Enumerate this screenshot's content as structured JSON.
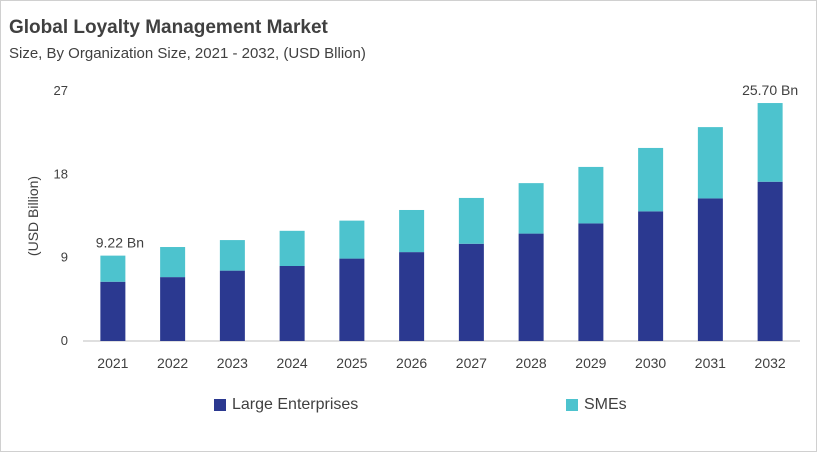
{
  "chart_data": {
    "type": "bar",
    "stacked": true,
    "title": "Global Loyalty Management Market",
    "subtitle": "Size, By Organization Size, 2021 - 2032, (USD Bllion)",
    "ylabel": "(USD Billion)",
    "xlabel": "",
    "ylim": [
      0,
      27
    ],
    "yticks": [
      0,
      9,
      18,
      27
    ],
    "grid": false,
    "legend_position": "bottom",
    "categories": [
      "2021",
      "2022",
      "2023",
      "2024",
      "2025",
      "2026",
      "2027",
      "2028",
      "2029",
      "2030",
      "2031",
      "2032"
    ],
    "series": [
      {
        "name": "Large Enterprises",
        "color": "#2B3990",
        "values": [
          6.4,
          6.9,
          7.6,
          8.1,
          8.9,
          9.6,
          10.5,
          11.6,
          12.7,
          14.0,
          15.4,
          17.2
        ]
      },
      {
        "name": "SMEs",
        "color": "#4DC3CE",
        "values": [
          2.82,
          3.25,
          3.3,
          3.8,
          4.1,
          4.55,
          4.95,
          5.45,
          6.1,
          6.85,
          7.7,
          8.5
        ]
      }
    ],
    "annotations": [
      {
        "category": "2021",
        "text": "9.22 Bn"
      },
      {
        "category": "2032",
        "text": "25.70 Bn"
      }
    ]
  }
}
